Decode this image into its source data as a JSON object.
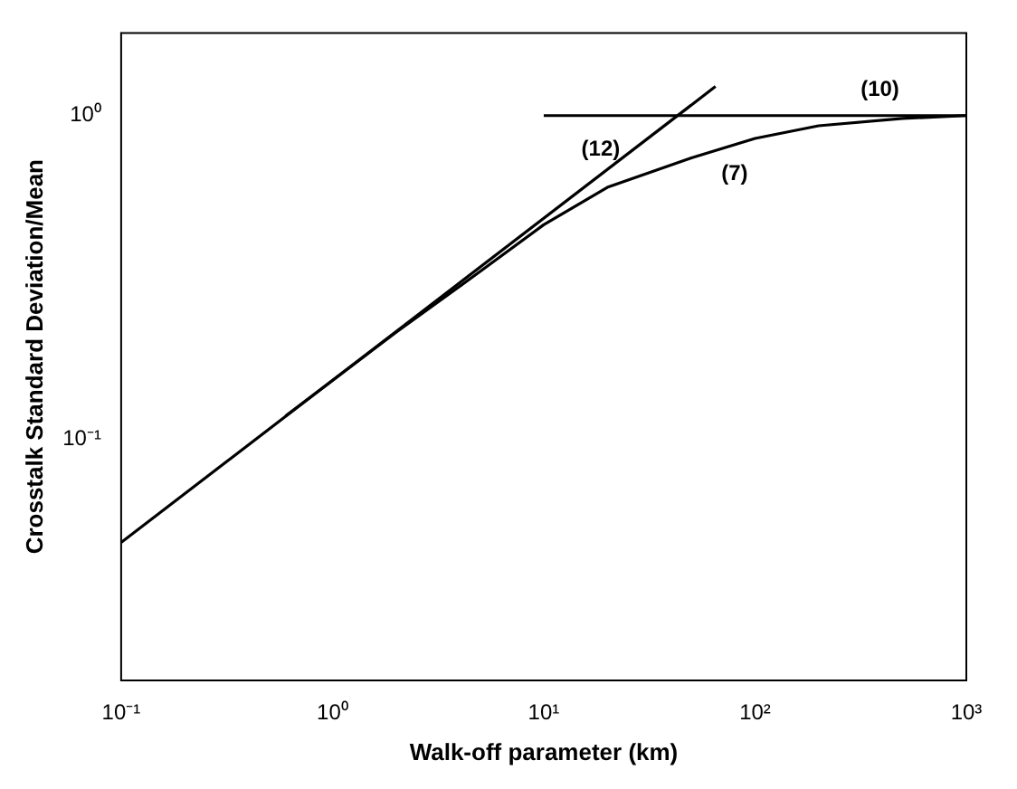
{
  "chart_data": {
    "type": "line",
    "xlabel": "Walk-off parameter (km)",
    "ylabel": "Crosstalk Standard Deviation/Mean",
    "log": "xy",
    "xlim": [
      0.1,
      1000
    ],
    "ylim": [
      0.018,
      1.8
    ],
    "xticks": [
      {
        "value": 0.1,
        "label": "10⁻¹"
      },
      {
        "value": 1,
        "label": "10⁰"
      },
      {
        "value": 10,
        "label": "10¹"
      },
      {
        "value": 100,
        "label": "10²"
      },
      {
        "value": 1000,
        "label": "10³"
      }
    ],
    "yticks": [
      {
        "value": 0.1,
        "label": "10⁻¹"
      },
      {
        "value": 1,
        "label": "10⁰"
      }
    ],
    "grid": false,
    "legend": false,
    "marker": "none",
    "line_style": "solid",
    "series": [
      {
        "color": "#000000",
        "x": [
          0.1,
          65
        ],
        "values": [
          0.048,
          1.23
        ]
      },
      {
        "color": "#000000",
        "x": [
          10,
          1000
        ],
        "values": [
          1,
          1
        ]
      },
      {
        "color": "#000000",
        "x": [
          0.6,
          1,
          2,
          5,
          10,
          20,
          50,
          100,
          200,
          500,
          1000
        ],
        "values": [
          0.118,
          0.152,
          0.214,
          0.33,
          0.46,
          0.6,
          0.74,
          0.85,
          0.93,
          0.98,
          1.0
        ]
      }
    ],
    "annotations": [
      {
        "text": "(12)",
        "x": 18.6,
        "y": 0.656
      },
      {
        "text": "(10)",
        "x": 390,
        "y": 1
      },
      {
        "text": "(7)",
        "x": 80,
        "y": 0.81
      }
    ]
  }
}
